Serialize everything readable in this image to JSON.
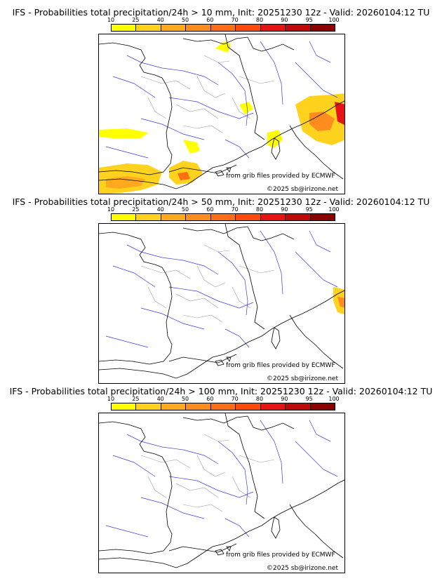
{
  "colorbar": {
    "ticks": [
      "10",
      "25",
      "40",
      "50",
      "60",
      "70",
      "80",
      "90",
      "95",
      "100"
    ],
    "colors": [
      "#ffff00",
      "#ffd21e",
      "#ffaa1e",
      "#ff8c1e",
      "#ff6e14",
      "#ff4a0a",
      "#e61414",
      "#be0a0a",
      "#8c0000"
    ]
  },
  "credits": {
    "source": "from grib files provided by ECMWF",
    "copyright": "©2025 sb@irizone.net"
  },
  "panels": [
    {
      "title": "IFS - Probabilities total precipitation/24h > 10 mm, Init: 20251230 12z - Valid: 20260104:12 TU"
    },
    {
      "title": "IFS - Probabilities total precipitation/24h > 50 mm, Init: 20251230 12z - Valid: 20260104:12 TU"
    },
    {
      "title": "IFS - Probabilities total precipitation/24h > 100 mm, Init: 20251230 12z - Valid: 20260104:12 TU"
    }
  ]
}
